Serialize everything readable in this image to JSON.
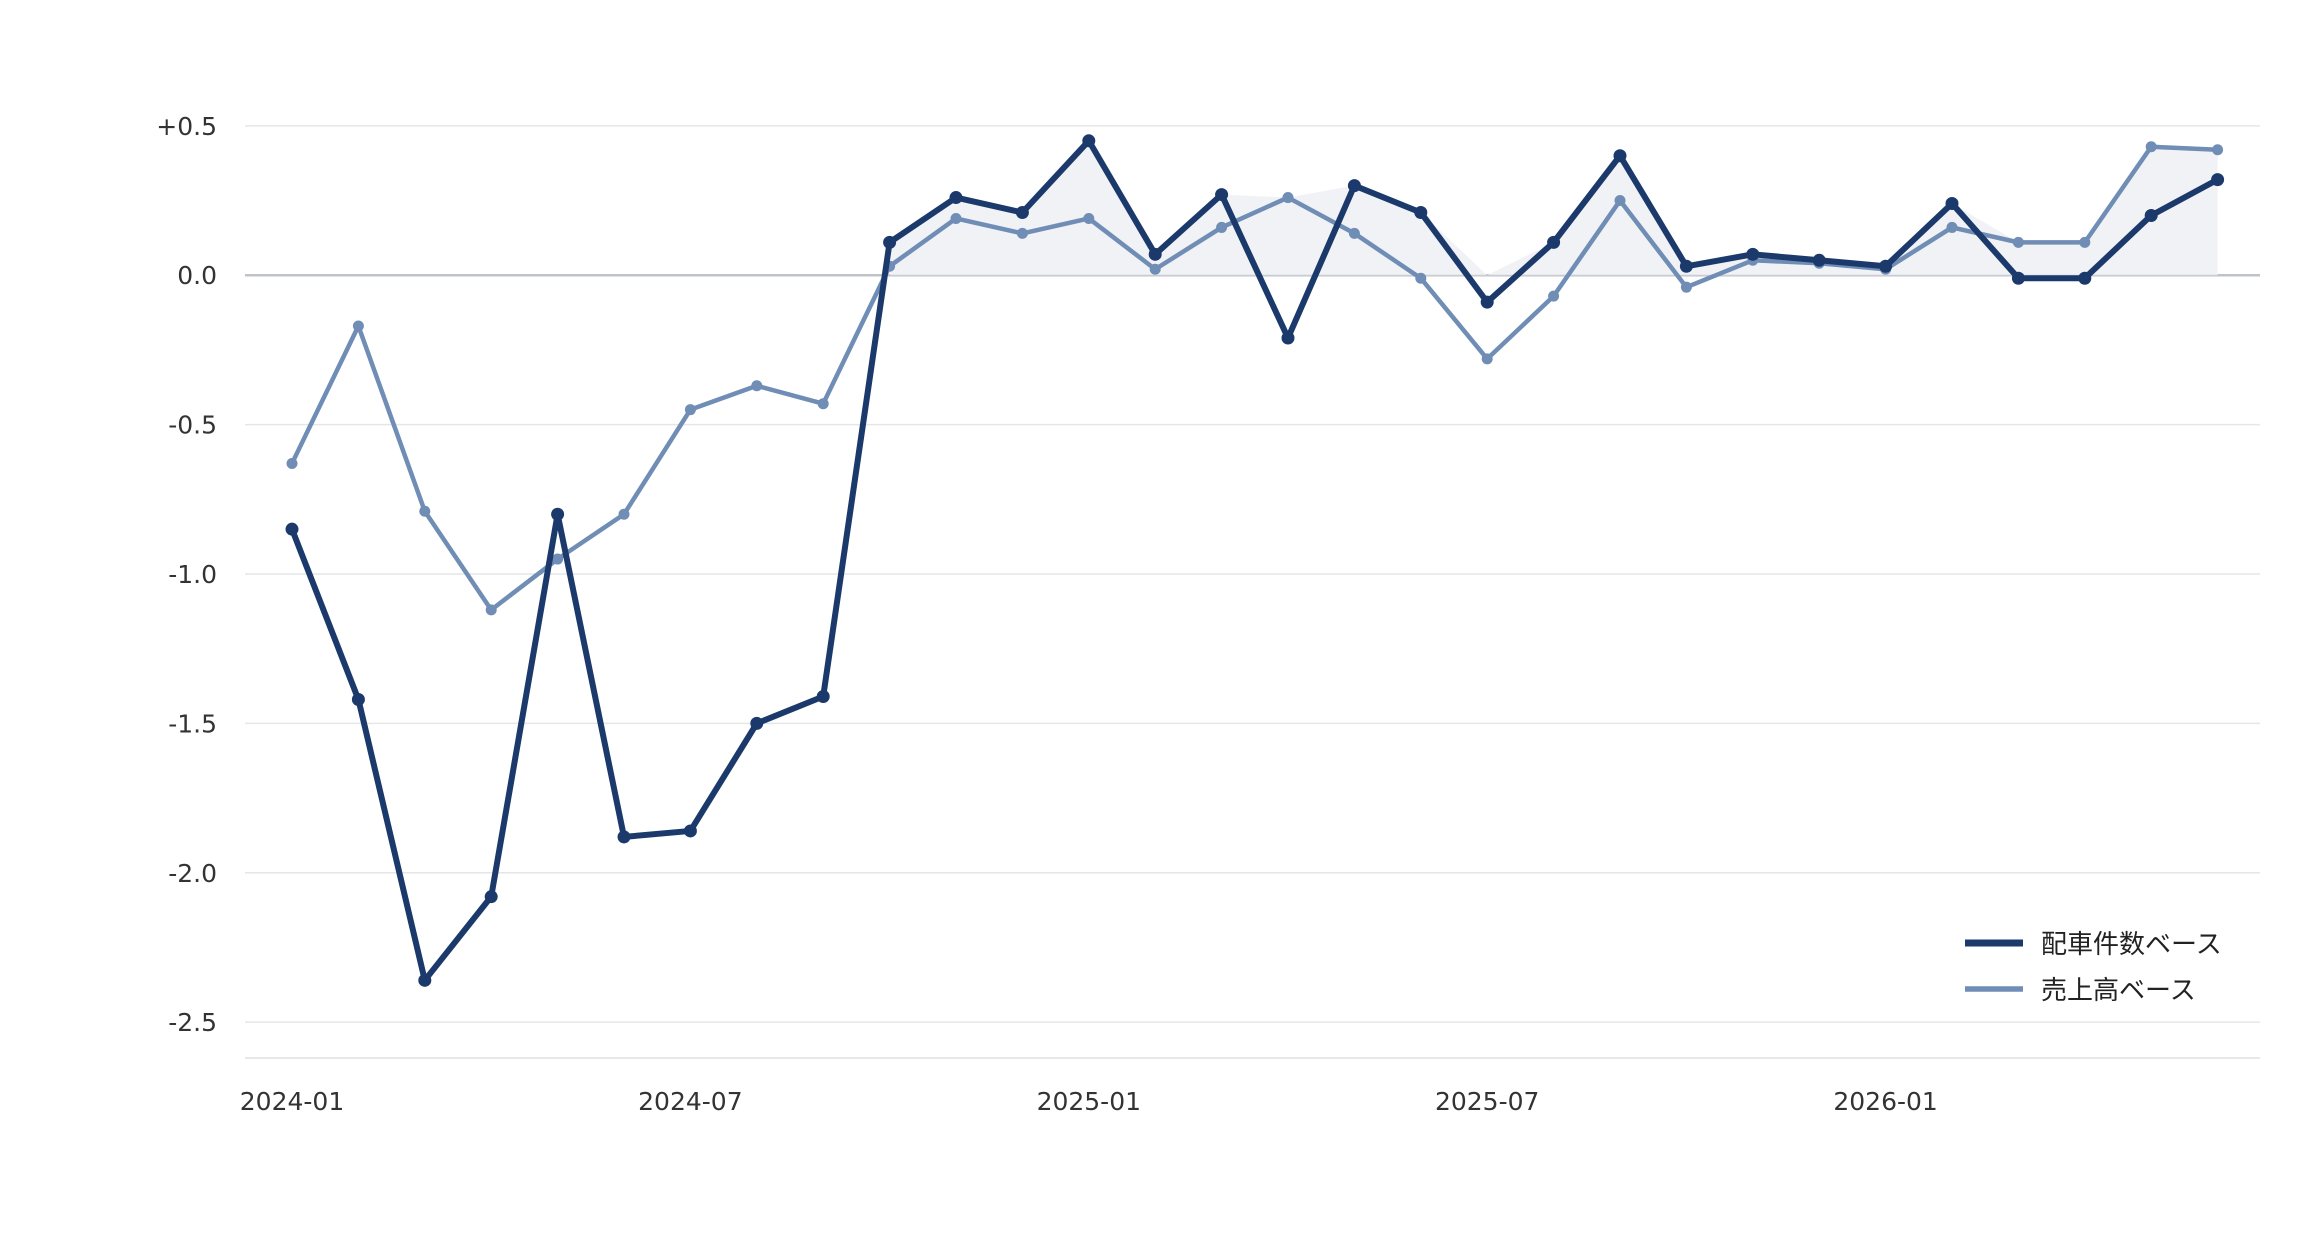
{
  "chart_data": {
    "type": "line",
    "title": "",
    "xlabel": "",
    "ylabel": "",
    "x": [
      "2024-01",
      "2024-02",
      "2024-03",
      "2024-04",
      "2024-05",
      "2024-06",
      "2024-07",
      "2024-08",
      "2024-09",
      "2024-10",
      "2024-11",
      "2024-12",
      "2025-01",
      "2025-02",
      "2025-03",
      "2025-04",
      "2025-05",
      "2025-06",
      "2025-07",
      "2025-08",
      "2025-09",
      "2025-10",
      "2025-11",
      "2025-12",
      "2026-01",
      "2026-02",
      "2026-03",
      "2026-04",
      "2026-05",
      "2026-06"
    ],
    "x_ticks": [
      "2024-01",
      "2024-07",
      "2025-01",
      "2025-07",
      "2026-01"
    ],
    "y_ticks": [
      0.5,
      0.0,
      -0.5,
      -1.0,
      -1.5,
      -2.0,
      -2.5
    ],
    "y_tick_labels": [
      "+0.5",
      "0.0",
      "-0.5",
      "-1.0",
      "-1.5",
      "-2.0",
      "-2.5"
    ],
    "ylim": [
      -2.62,
      0.62
    ],
    "grid": true,
    "legend_position": "bottom-right",
    "fill_between_positive": true,
    "series": [
      {
        "name": "配車件数ベース",
        "color": "#1b3a6b",
        "values": [
          -0.85,
          -1.42,
          -2.36,
          -2.08,
          -0.8,
          -1.88,
          -1.86,
          -1.5,
          -1.41,
          0.11,
          0.26,
          0.21,
          0.45,
          0.07,
          0.27,
          -0.21,
          0.3,
          0.21,
          -0.09,
          0.11,
          0.4,
          0.03,
          0.07,
          0.05,
          0.03,
          0.24,
          -0.01,
          -0.01,
          0.2,
          0.32
        ]
      },
      {
        "name": "売上高ベース",
        "color": "#6f8db5",
        "values": [
          -0.63,
          -0.17,
          -0.79,
          -1.12,
          -0.95,
          -0.8,
          -0.45,
          -0.37,
          -0.43,
          0.03,
          0.19,
          0.14,
          0.19,
          0.02,
          0.16,
          0.26,
          0.14,
          -0.01,
          -0.28,
          -0.07,
          0.25,
          -0.04,
          0.05,
          0.04,
          0.02,
          0.16,
          0.11,
          0.11,
          0.43,
          0.42
        ]
      }
    ]
  }
}
